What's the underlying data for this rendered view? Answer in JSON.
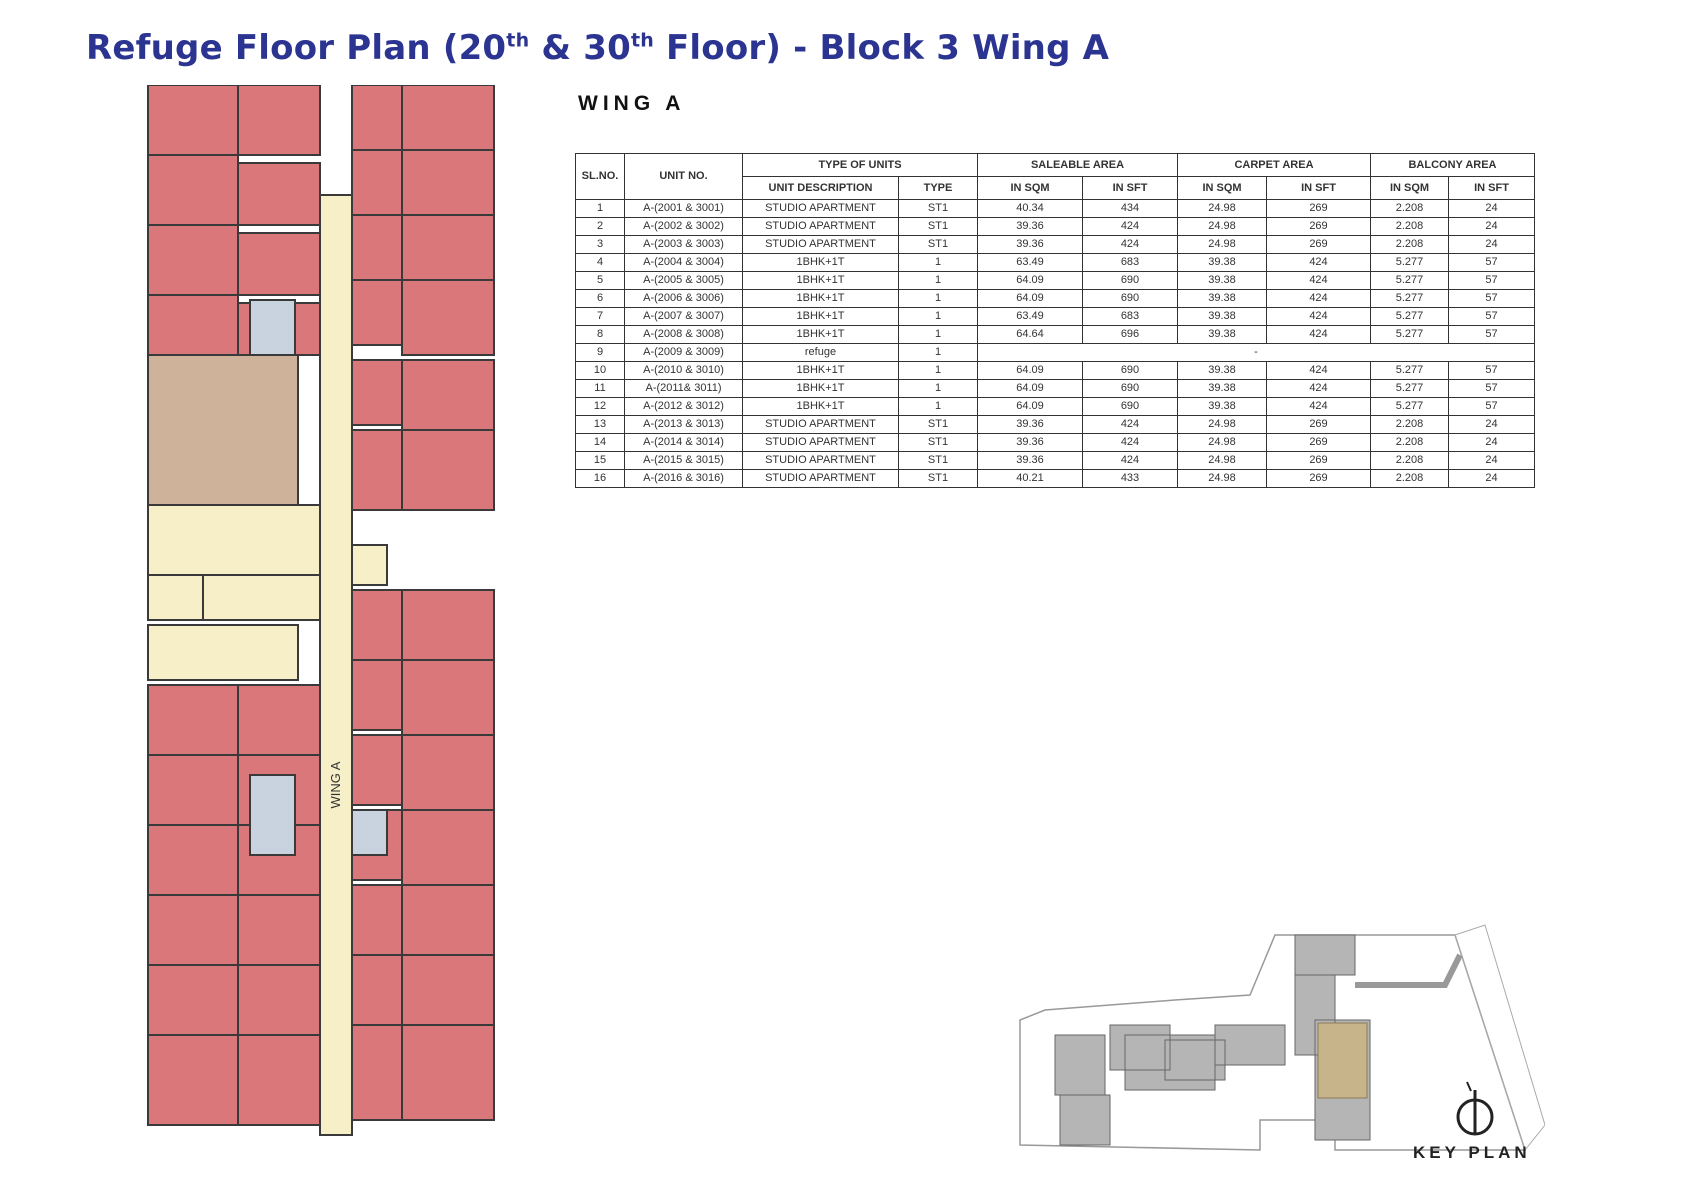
{
  "title": {
    "prefix": "Refuge Floor Plan (20",
    "sup1": "th",
    "mid": " & 30",
    "sup2": "th",
    "suffix": " Floor) - Block 3 Wing A"
  },
  "plan": {
    "corridor_label": "WING A"
  },
  "colors": {
    "title": "#2b3490",
    "unit_fill": "#d9777a",
    "corridor": "#f6efc8",
    "refuge": "#cfb29a",
    "lift": "#c9d3df"
  },
  "wing_heading": "WING A",
  "table": {
    "headers": {
      "sl_no": "SL.NO.",
      "unit_no": "UNIT NO.",
      "type_of_units": "TYPE OF UNITS",
      "saleable_area": "SALEABLE AREA",
      "carpet_area": "CARPET AREA",
      "balcony_area": "BALCONY AREA",
      "unit_description": "UNIT DESCRIPTION",
      "type": "TYPE",
      "sqm1": "IN SQM",
      "sft1": "IN SFT",
      "sqm2": "IN SQM",
      "sft2": "IN SFT",
      "sqm3": "IN SQM",
      "sft3": "IN SFT"
    },
    "rows": [
      [
        "1",
        "A-(2001 & 3001)",
        "STUDIO APARTMENT",
        "ST1",
        "40.34",
        "434",
        "24.98",
        "269",
        "2.208",
        "24"
      ],
      [
        "2",
        "A-(2002 & 3002)",
        "STUDIO APARTMENT",
        "ST1",
        "39.36",
        "424",
        "24.98",
        "269",
        "2.208",
        "24"
      ],
      [
        "3",
        "A-(2003 & 3003)",
        "STUDIO APARTMENT",
        "ST1",
        "39.36",
        "424",
        "24.98",
        "269",
        "2.208",
        "24"
      ],
      [
        "4",
        "A-(2004 & 3004)",
        "1BHK+1T",
        "1",
        "63.49",
        "683",
        "39.38",
        "424",
        "5.277",
        "57"
      ],
      [
        "5",
        "A-(2005 & 3005)",
        "1BHK+1T",
        "1",
        "64.09",
        "690",
        "39.38",
        "424",
        "5.277",
        "57"
      ],
      [
        "6",
        "A-(2006 & 3006)",
        "1BHK+1T",
        "1",
        "64.09",
        "690",
        "39.38",
        "424",
        "5.277",
        "57"
      ],
      [
        "7",
        "A-(2007 & 3007)",
        "1BHK+1T",
        "1",
        "63.49",
        "683",
        "39.38",
        "424",
        "5.277",
        "57"
      ],
      [
        "8",
        "A-(2008 & 3008)",
        "1BHK+1T",
        "1",
        "64.64",
        "696",
        "39.38",
        "424",
        "5.277",
        "57"
      ],
      [
        "9",
        "A-(2009 & 3009)",
        "refuge",
        "1",
        "-"
      ],
      [
        "10",
        "A-(2010 & 3010)",
        "1BHK+1T",
        "1",
        "64.09",
        "690",
        "39.38",
        "424",
        "5.277",
        "57"
      ],
      [
        "11",
        "A-(2011& 3011)",
        "1BHK+1T",
        "1",
        "64.09",
        "690",
        "39.38",
        "424",
        "5.277",
        "57"
      ],
      [
        "12",
        "A-(2012 & 3012)",
        "1BHK+1T",
        "1",
        "64.09",
        "690",
        "39.38",
        "424",
        "5.277",
        "57"
      ],
      [
        "13",
        "A-(2013 & 3013)",
        "STUDIO APARTMENT",
        "ST1",
        "39.36",
        "424",
        "24.98",
        "269",
        "2.208",
        "24"
      ],
      [
        "14",
        "A-(2014 & 3014)",
        "STUDIO APARTMENT",
        "ST1",
        "39.36",
        "424",
        "24.98",
        "269",
        "2.208",
        "24"
      ],
      [
        "15",
        "A-(2015 & 3015)",
        "STUDIO APARTMENT",
        "ST1",
        "39.36",
        "424",
        "24.98",
        "269",
        "2.208",
        "24"
      ],
      [
        "16",
        "A-(2016 & 3016)",
        "STUDIO APARTMENT",
        "ST1",
        "40.21",
        "433",
        "24.98",
        "269",
        "2.208",
        "24"
      ]
    ]
  },
  "key_plan": {
    "label": "KEY PLAN",
    "icon": "north-arrow-icon"
  }
}
